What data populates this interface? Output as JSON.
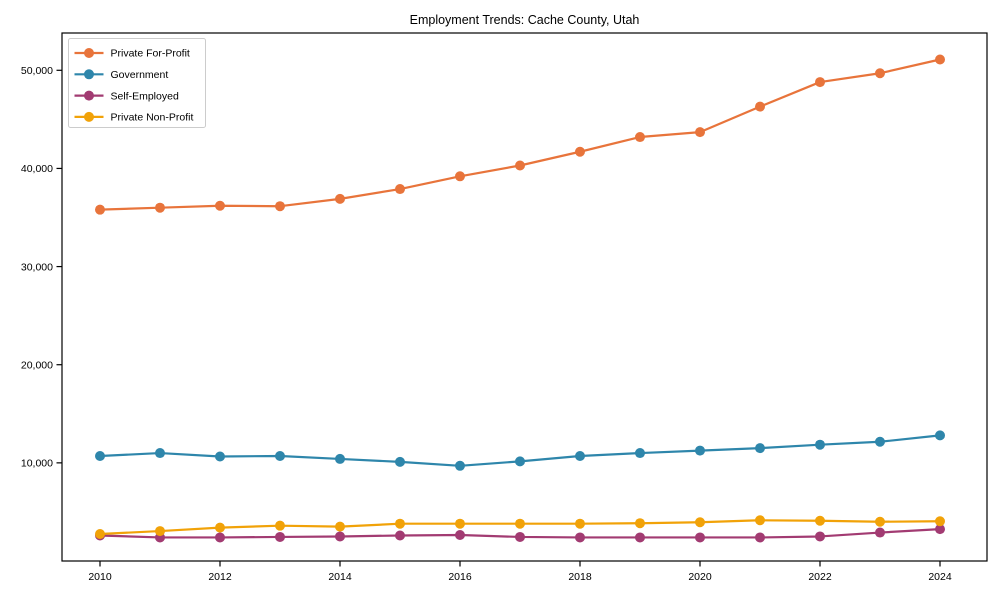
{
  "figure": {
    "title": "Employment Trends: Cache County, Utah",
    "background_color": "#ffffff",
    "frame_color": "#000000"
  },
  "chart_data": {
    "type": "line",
    "title": "Employment Trends: Cache County, Utah",
    "xlabel": "",
    "ylabel": "",
    "grid": false,
    "legend_position": "upper left",
    "x": [
      2010,
      2011,
      2012,
      2013,
      2014,
      2015,
      2016,
      2017,
      2018,
      2019,
      2020,
      2021,
      2022,
      2023,
      2024
    ],
    "xticks": [
      2010,
      2012,
      2014,
      2016,
      2018,
      2020,
      2022,
      2024
    ],
    "xtick_labels": [
      "2010",
      "2012",
      "2014",
      "2016",
      "2018",
      "2020",
      "2022",
      "2024"
    ],
    "yticks": [
      10000,
      20000,
      30000,
      40000,
      50000
    ],
    "ytick_labels": [
      "10,000",
      "20,000",
      "30,000",
      "40,000",
      "50,000"
    ],
    "ylim": [
      0,
      53800
    ],
    "xlim": [
      2009.4,
      2024.8
    ],
    "series": [
      {
        "name": "Private For-Profit",
        "color": "#E8743B",
        "values": [
          35800,
          36000,
          36200,
          36150,
          36900,
          37900,
          39200,
          40300,
          41700,
          43200,
          43700,
          46300,
          48800,
          49700,
          51100
        ]
      },
      {
        "name": "Government",
        "color": "#2E86AB",
        "values": [
          10700,
          11000,
          10650,
          10700,
          10400,
          10100,
          9700,
          10150,
          10700,
          11000,
          11250,
          11500,
          11850,
          12150,
          12800
        ]
      },
      {
        "name": "Self-Employed",
        "color": "#A23B72",
        "values": [
          2600,
          2400,
          2400,
          2450,
          2500,
          2600,
          2650,
          2450,
          2400,
          2400,
          2400,
          2400,
          2500,
          2900,
          3250
        ]
      },
      {
        "name": "Private Non-Profit",
        "color": "#F1A208",
        "values": [
          2750,
          3050,
          3400,
          3600,
          3500,
          3800,
          3800,
          3800,
          3800,
          3850,
          3950,
          4150,
          4100,
          4000,
          4050
        ]
      }
    ]
  }
}
